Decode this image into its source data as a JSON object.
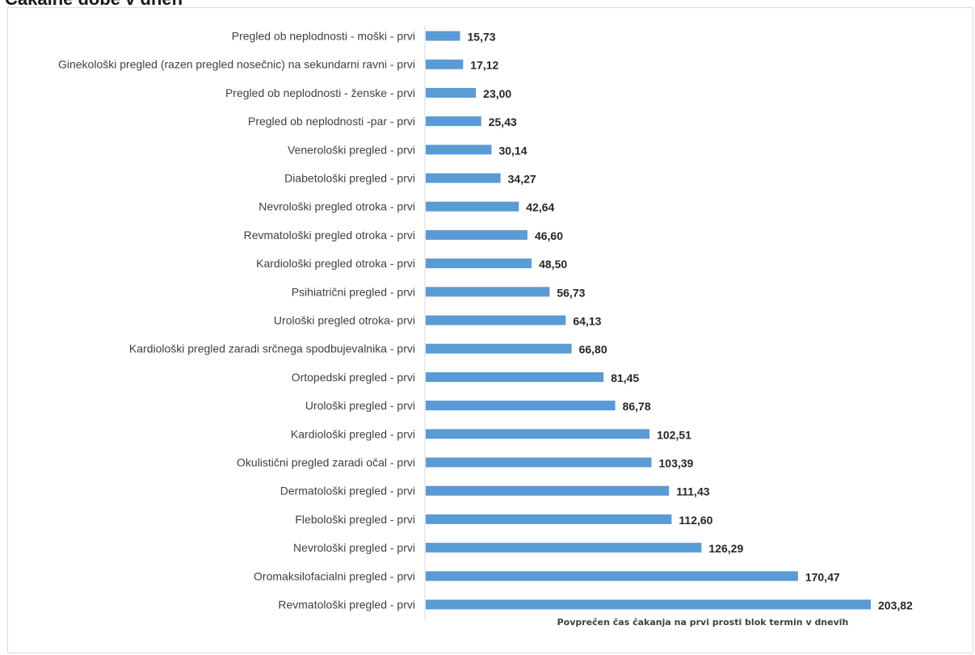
{
  "page": {
    "heading": "Čakalne dobe v dneh"
  },
  "chart_data": {
    "type": "bar",
    "orientation": "horizontal",
    "title": "",
    "xlabel": "Povprečen čas čakanja na prvi prosti blok termin v dnevih",
    "ylabel": "",
    "xlim": [
      0,
      210
    ],
    "grid": false,
    "legend": "none",
    "bar_color": "#5b9bd5",
    "categories": [
      "Pregled ob neplodnosti - moški - prvi",
      "Ginekološki pregled (razen pregled nosečnic) na sekundarni ravni - prvi",
      "Pregled ob neplodnosti - ženske - prvi",
      "Pregled ob neplodnosti -par - prvi",
      "Venerološki pregled - prvi",
      "Diabetološki pregled - prvi",
      "Nevrološki pregled otroka - prvi",
      "Revmatološki pregled otroka - prvi",
      "Kardiološki pregled otroka - prvi",
      "Psihiatrični pregled - prvi",
      "Urološki pregled otroka- prvi",
      "Kardiološki pregled zaradi srčnega spodbujevalnika - prvi",
      "Ortopedski pregled - prvi",
      "Urološki pregled - prvi",
      "Kardiološki pregled - prvi",
      "Okulistični pregled zaradi očal - prvi",
      "Dermatološki pregled - prvi",
      "Flebološki pregled - prvi",
      "Nevrološki pregled - prvi",
      "Oromaksilofacialni pregled - prvi",
      "Revmatološki pregled - prvi"
    ],
    "values": [
      15.73,
      17.12,
      23.0,
      25.43,
      30.14,
      34.27,
      42.64,
      46.6,
      48.5,
      56.73,
      64.13,
      66.8,
      81.45,
      86.78,
      102.51,
      103.39,
      111.43,
      112.6,
      126.29,
      170.47,
      203.82
    ],
    "value_labels": [
      "15,73",
      "17,12",
      "23,00",
      "25,43",
      "30,14",
      "34,27",
      "42,64",
      "46,60",
      "48,50",
      "56,73",
      "64,13",
      "66,80",
      "81,45",
      "86,78",
      "102,51",
      "103,39",
      "111,43",
      "112,60",
      "126,29",
      "170,47",
      "203,82"
    ]
  }
}
